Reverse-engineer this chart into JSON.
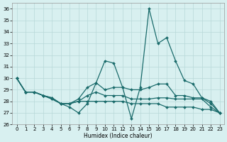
{
  "xlabel": "Humidex (Indice chaleur)",
  "xlim": [
    -0.5,
    23.5
  ],
  "ylim": [
    26,
    36.5
  ],
  "yticks": [
    26,
    27,
    28,
    29,
    30,
    31,
    32,
    33,
    34,
    35,
    36
  ],
  "xticks": [
    0,
    1,
    2,
    3,
    4,
    5,
    6,
    7,
    8,
    9,
    10,
    11,
    12,
    13,
    14,
    15,
    16,
    17,
    18,
    19,
    20,
    21,
    22,
    23
  ],
  "line_color": "#1a6b6b",
  "bg_color": "#d8f0f0",
  "grid_color": "#b8d8d8",
  "series_x": [
    [
      0,
      1,
      2,
      3,
      4,
      5,
      6,
      7,
      8,
      9,
      10,
      11,
      12,
      13,
      14,
      15,
      16,
      17,
      18,
      19,
      20,
      21,
      22,
      23
    ],
    [
      0,
      1,
      2,
      3,
      4,
      5,
      6,
      7,
      8,
      9,
      10,
      11,
      12,
      13,
      14,
      15,
      16,
      17,
      18,
      19,
      20,
      21,
      22,
      23
    ],
    [
      0,
      1,
      2,
      3,
      4,
      5,
      6,
      7,
      8,
      9,
      10,
      11,
      12,
      13,
      14,
      15,
      16,
      17,
      18,
      19,
      20,
      21,
      22,
      23
    ],
    [
      0,
      1,
      2,
      3,
      4,
      5,
      6,
      7,
      8,
      9,
      10,
      11,
      12,
      13,
      14,
      15,
      16,
      17,
      18,
      19,
      20,
      21,
      22,
      23
    ]
  ],
  "series_y": [
    [
      30,
      28.8,
      28.8,
      28.5,
      28.3,
      27.8,
      27.5,
      27.0,
      27.8,
      29.6,
      31.5,
      31.3,
      29.2,
      26.5,
      29.2,
      36.0,
      33.0,
      33.5,
      31.5,
      29.8,
      29.5,
      28.3,
      28.0,
      27.0
    ],
    [
      30,
      28.8,
      28.8,
      28.5,
      28.3,
      27.8,
      27.8,
      28.2,
      29.2,
      29.6,
      29.0,
      29.2,
      29.2,
      29.0,
      29.0,
      29.2,
      29.5,
      29.5,
      28.5,
      28.5,
      28.3,
      28.3,
      27.8,
      27.0
    ],
    [
      30,
      28.8,
      28.8,
      28.5,
      28.2,
      27.8,
      27.8,
      28.0,
      28.5,
      28.8,
      28.5,
      28.5,
      28.5,
      28.2,
      28.2,
      28.2,
      28.3,
      28.3,
      28.2,
      28.2,
      28.2,
      28.2,
      27.5,
      27.0
    ],
    [
      30,
      28.8,
      28.8,
      28.5,
      28.2,
      27.8,
      27.8,
      28.0,
      28.0,
      28.0,
      28.0,
      28.0,
      28.0,
      27.8,
      27.8,
      27.8,
      27.8,
      27.5,
      27.5,
      27.5,
      27.5,
      27.3,
      27.3,
      27.0
    ]
  ]
}
